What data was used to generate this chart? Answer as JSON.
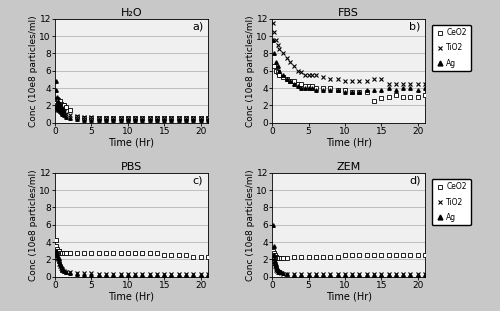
{
  "title_fontsize": 8,
  "label_fontsize": 7,
  "tick_fontsize": 6.5,
  "bg_color": "#f0f0f0",
  "fig_bg": "#c8c8c8",
  "H2O": {
    "title": "H₂O",
    "panel_label": "a)",
    "ylim": [
      0,
      12
    ],
    "yticks": [
      0,
      2,
      4,
      6,
      8,
      10,
      12
    ],
    "CeO2": {
      "t": [
        0.1,
        0.15,
        0.2,
        0.25,
        0.3,
        0.35,
        0.4,
        0.45,
        0.5,
        0.55,
        0.6,
        0.65,
        0.7,
        0.75,
        0.8,
        0.85,
        0.9,
        1.0,
        1.1,
        1.2,
        1.3,
        1.5,
        2,
        3,
        4,
        5,
        6,
        7,
        8,
        9,
        10,
        11,
        12,
        13,
        14,
        15,
        16,
        17,
        18,
        19,
        20,
        21
      ],
      "v": [
        2.2,
        2.5,
        2.3,
        2.7,
        2.0,
        2.4,
        2.1,
        2.6,
        2.2,
        2.0,
        2.3,
        2.1,
        2.5,
        1.9,
        2.2,
        2.0,
        1.8,
        2.1,
        2.0,
        1.9,
        2.0,
        1.8,
        1.5,
        0.7,
        0.6,
        0.6,
        0.6,
        0.6,
        0.6,
        0.6,
        0.6,
        0.6,
        0.6,
        0.6,
        0.6,
        0.6,
        0.6,
        0.6,
        0.5,
        0.5,
        0.5,
        0.5
      ]
    },
    "TiO2": {
      "t": [
        0.1,
        0.15,
        0.2,
        0.25,
        0.3,
        0.35,
        0.4,
        0.45,
        0.5,
        0.55,
        0.6,
        0.65,
        0.7,
        0.75,
        0.8,
        0.85,
        0.9,
        1.0,
        1.1,
        1.2,
        1.3,
        1.5,
        2,
        3,
        4,
        5,
        6,
        7,
        8,
        9,
        10,
        11,
        12,
        13,
        14,
        15,
        16,
        17,
        18,
        19,
        20,
        21
      ],
      "v": [
        1.5,
        1.7,
        1.9,
        1.6,
        1.8,
        2.0,
        1.5,
        1.7,
        1.9,
        1.6,
        1.5,
        1.8,
        1.4,
        1.9,
        1.5,
        1.6,
        1.7,
        1.5,
        1.4,
        1.3,
        1.2,
        1.0,
        0.9,
        0.8,
        0.7,
        0.7,
        0.6,
        0.6,
        0.6,
        0.6,
        0.6,
        0.6,
        0.6,
        0.6,
        0.6,
        0.6,
        0.6,
        0.6,
        0.6,
        0.6,
        0.6,
        0.6
      ]
    },
    "Ag": {
      "t": [
        0.1,
        0.2,
        0.3,
        0.4,
        0.5,
        0.6,
        0.7,
        0.8,
        0.9,
        1.0,
        1.2,
        1.5,
        2,
        3,
        4,
        5,
        6,
        7,
        8,
        9,
        10,
        11,
        12,
        13,
        14,
        15,
        16,
        17,
        18,
        19,
        20,
        21
      ],
      "v": [
        4.8,
        3.8,
        3.0,
        2.5,
        2.0,
        1.7,
        1.4,
        1.2,
        1.1,
        1.0,
        0.9,
        0.7,
        0.5,
        0.4,
        0.3,
        0.3,
        0.3,
        0.3,
        0.3,
        0.3,
        0.3,
        0.3,
        0.3,
        0.3,
        0.3,
        0.3,
        0.3,
        0.3,
        0.3,
        0.3,
        0.3,
        0.3
      ]
    }
  },
  "FBS": {
    "title": "FBS",
    "panel_label": "b)",
    "ylim": [
      0,
      12
    ],
    "yticks": [
      0,
      2,
      4,
      6,
      8,
      10,
      12
    ],
    "CeO2": {
      "t": [
        0.25,
        0.5,
        0.75,
        1.0,
        1.5,
        2.0,
        2.5,
        3.0,
        3.5,
        4.0,
        4.5,
        5.0,
        5.5,
        6.0,
        7.0,
        8.0,
        9.0,
        10.0,
        11.0,
        12.0,
        13.0,
        14.0,
        15.0,
        16.0,
        17.0,
        18.0,
        19.0,
        20.0,
        21.0
      ],
      "v": [
        6.5,
        6.0,
        5.8,
        5.5,
        5.3,
        5.0,
        4.8,
        4.8,
        4.5,
        4.5,
        4.2,
        4.2,
        4.2,
        4.0,
        4.0,
        4.0,
        3.8,
        3.8,
        3.5,
        3.5,
        3.5,
        2.5,
        2.8,
        3.0,
        3.2,
        3.0,
        3.0,
        3.0,
        3.2
      ]
    },
    "TiO2": {
      "t": [
        0.1,
        0.25,
        0.5,
        0.75,
        1.0,
        1.5,
        2.0,
        2.5,
        3.0,
        3.5,
        4.0,
        4.5,
        5.0,
        5.5,
        6.0,
        7.0,
        8.0,
        9.0,
        10.0,
        11.0,
        12.0,
        13.0,
        14.0,
        15.0,
        16.0,
        17.0,
        18.0,
        19.0,
        20.0,
        21.0
      ],
      "v": [
        11.5,
        10.5,
        9.5,
        9.0,
        8.5,
        8.0,
        7.5,
        7.0,
        6.5,
        6.0,
        5.8,
        5.5,
        5.5,
        5.5,
        5.5,
        5.3,
        5.0,
        5.0,
        4.8,
        4.8,
        4.8,
        4.8,
        5.0,
        5.0,
        4.5,
        4.5,
        4.5,
        4.5,
        4.5,
        4.5
      ]
    },
    "Ag": {
      "t": [
        0.1,
        0.25,
        0.5,
        0.75,
        1.0,
        1.5,
        2.0,
        2.5,
        3.0,
        3.5,
        4.0,
        4.5,
        5.0,
        5.5,
        6.0,
        7.0,
        8.0,
        9.0,
        10.0,
        11.0,
        12.0,
        13.0,
        14.0,
        15.0,
        16.0,
        17.0,
        18.0,
        19.0,
        20.0,
        21.0
      ],
      "v": [
        9.5,
        8.0,
        7.0,
        6.5,
        6.0,
        5.5,
        5.0,
        4.8,
        4.5,
        4.2,
        4.0,
        4.0,
        4.0,
        4.0,
        3.8,
        3.8,
        3.8,
        3.8,
        3.5,
        3.5,
        3.5,
        3.8,
        3.8,
        3.8,
        4.0,
        3.8,
        4.0,
        4.0,
        3.8,
        4.0
      ]
    }
  },
  "PBS": {
    "title": "PBS",
    "panel_label": "c)",
    "ylim": [
      0,
      12
    ],
    "yticks": [
      0,
      2,
      4,
      6,
      8,
      10,
      12
    ],
    "CeO2": {
      "t": [
        0.1,
        0.2,
        0.3,
        0.4,
        0.5,
        0.6,
        0.7,
        0.8,
        0.9,
        1.0,
        1.2,
        1.5,
        2,
        3,
        4,
        5,
        6,
        7,
        8,
        9,
        10,
        11,
        12,
        13,
        14,
        15,
        16,
        17,
        18,
        19,
        20,
        21
      ],
      "v": [
        4.2,
        3.5,
        3.2,
        3.0,
        3.0,
        3.0,
        2.8,
        2.8,
        2.8,
        2.8,
        2.8,
        2.8,
        2.8,
        2.8,
        2.8,
        2.7,
        2.7,
        2.7,
        2.7,
        2.7,
        2.7,
        2.7,
        2.7,
        2.7,
        2.7,
        2.5,
        2.5,
        2.5,
        2.5,
        2.3,
        2.3,
        2.3
      ]
    },
    "TiO2": {
      "t": [
        0.1,
        0.2,
        0.3,
        0.4,
        0.5,
        0.6,
        0.7,
        0.8,
        0.9,
        1.0,
        1.2,
        1.5,
        2,
        3,
        4,
        5,
        6,
        7,
        8,
        9,
        10,
        11,
        12,
        13,
        14,
        15,
        16,
        17,
        18,
        19,
        20,
        21
      ],
      "v": [
        2.5,
        2.8,
        2.2,
        2.0,
        1.8,
        1.5,
        1.2,
        1.0,
        0.9,
        0.8,
        0.7,
        0.6,
        0.5,
        0.4,
        0.4,
        0.4,
        0.3,
        0.3,
        0.3,
        0.3,
        0.3,
        0.3,
        0.3,
        0.3,
        0.3,
        0.3,
        0.3,
        0.3,
        0.3,
        0.3,
        0.3,
        0.3
      ]
    },
    "Ag": {
      "t": [
        0.1,
        0.2,
        0.3,
        0.4,
        0.5,
        0.6,
        0.7,
        0.8,
        0.9,
        1.0,
        1.2,
        1.5,
        2,
        3,
        4,
        5,
        6,
        7,
        8,
        9,
        10,
        11,
        12,
        13,
        14,
        15,
        16,
        17,
        18,
        19,
        20,
        21
      ],
      "v": [
        3.0,
        2.8,
        2.5,
        2.2,
        2.0,
        1.8,
        1.5,
        1.2,
        1.0,
        0.8,
        0.7,
        0.5,
        0.4,
        0.3,
        0.2,
        0.2,
        0.2,
        0.2,
        0.2,
        0.2,
        0.2,
        0.2,
        0.2,
        0.2,
        0.2,
        0.2,
        0.2,
        0.2,
        0.2,
        0.2,
        0.2,
        0.2
      ]
    }
  },
  "ZEM": {
    "title": "ZEM",
    "panel_label": "d)",
    "ylim": [
      0,
      12
    ],
    "yticks": [
      0,
      2,
      4,
      6,
      8,
      10,
      12
    ],
    "CeO2": {
      "t": [
        0.1,
        0.2,
        0.3,
        0.4,
        0.5,
        0.6,
        0.7,
        0.8,
        0.9,
        1.0,
        1.2,
        1.5,
        2,
        3,
        4,
        5,
        6,
        7,
        8,
        9,
        10,
        11,
        12,
        13,
        14,
        15,
        16,
        17,
        18,
        19,
        20,
        21
      ],
      "v": [
        3.0,
        2.8,
        2.5,
        2.5,
        2.3,
        2.3,
        2.2,
        2.2,
        2.2,
        2.2,
        2.2,
        2.2,
        2.2,
        2.3,
        2.3,
        2.3,
        2.3,
        2.3,
        2.3,
        2.3,
        2.5,
        2.5,
        2.5,
        2.5,
        2.5,
        2.5,
        2.5,
        2.5,
        2.5,
        2.5,
        2.5,
        2.5
      ]
    },
    "TiO2": {
      "t": [
        0.1,
        0.2,
        0.3,
        0.4,
        0.5,
        0.6,
        0.7,
        0.8,
        0.9,
        1.0,
        1.2,
        1.5,
        2,
        3,
        4,
        5,
        6,
        7,
        8,
        9,
        10,
        11,
        12,
        13,
        14,
        15,
        16,
        17,
        18,
        19,
        20,
        21
      ],
      "v": [
        2.0,
        1.8,
        1.5,
        1.2,
        1.0,
        0.8,
        0.7,
        0.6,
        0.5,
        0.5,
        0.4,
        0.3,
        0.3,
        0.3,
        0.3,
        0.3,
        0.3,
        0.3,
        0.3,
        0.3,
        0.3,
        0.3,
        0.3,
        0.3,
        0.3,
        0.3,
        0.3,
        0.3,
        0.3,
        0.3,
        0.3,
        0.3
      ]
    },
    "Ag": {
      "t": [
        0.1,
        0.2,
        0.3,
        0.4,
        0.5,
        0.6,
        0.7,
        0.8,
        0.9,
        1.0,
        1.2,
        1.5,
        2,
        3,
        4,
        5,
        6,
        7,
        8,
        9,
        10,
        11,
        12,
        13,
        14,
        15,
        16,
        17,
        18,
        19,
        20,
        21
      ],
      "v": [
        6.0,
        3.5,
        2.5,
        1.8,
        1.5,
        1.2,
        1.0,
        0.8,
        0.7,
        0.6,
        0.5,
        0.4,
        0.3,
        0.2,
        0.2,
        0.2,
        0.2,
        0.2,
        0.2,
        0.2,
        0.2,
        0.2,
        0.2,
        0.2,
        0.2,
        0.2,
        0.2,
        0.2,
        0.2,
        0.2,
        0.2,
        0.2
      ]
    }
  },
  "legend": {
    "CeO2_label": "CeO2",
    "TiO2_label": "TiO2",
    "Ag_label": "Ag"
  },
  "xlabel": "Time (Hr)",
  "ylabel": "Conc (10e8 particles/ml)",
  "xlim": [
    0,
    21
  ],
  "xticks": [
    0,
    5,
    10,
    15,
    20
  ]
}
